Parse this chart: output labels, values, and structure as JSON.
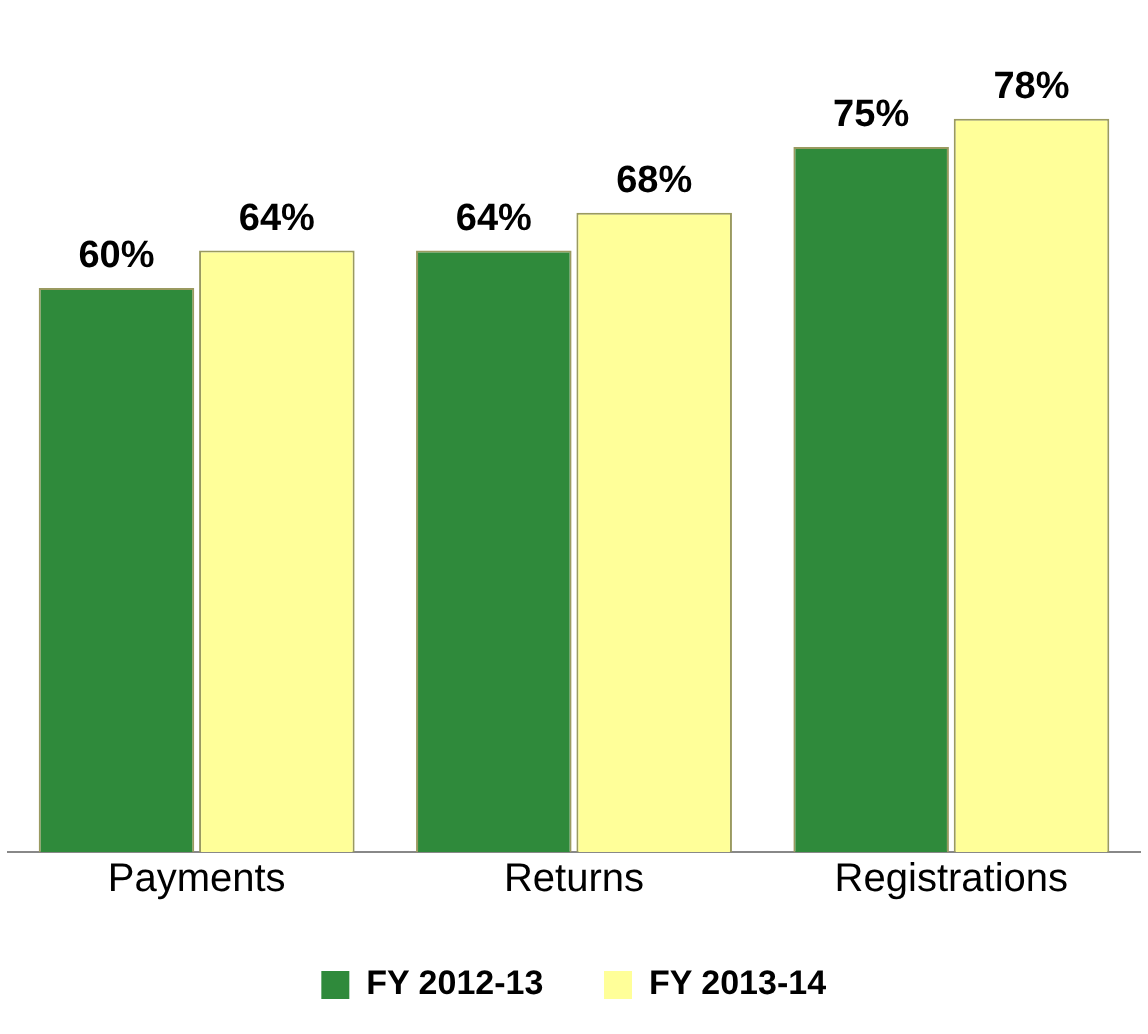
{
  "chart_data": {
    "type": "bar",
    "categories": [
      "Payments",
      "Returns",
      "Registrations"
    ],
    "series": [
      {
        "name": "FY 2012-13",
        "color": "#2f8a3b",
        "values": [
          60,
          64,
          75
        ],
        "value_labels": [
          "60%",
          "64%",
          "75%"
        ]
      },
      {
        "name": "FY 2013-14",
        "color": "#ffff99",
        "values": [
          64,
          68,
          78
        ],
        "value_labels": [
          "64%",
          "68%",
          "78%"
        ]
      }
    ],
    "legend": "bottom",
    "grid": false
  }
}
